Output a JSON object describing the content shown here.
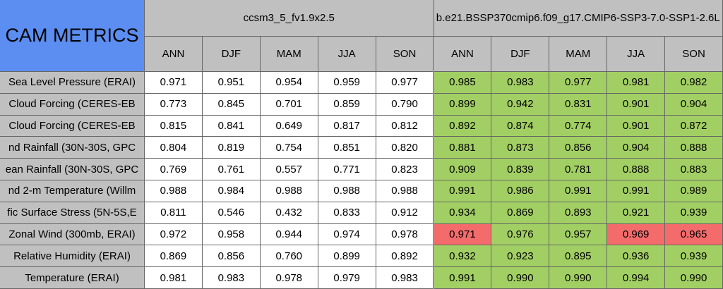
{
  "header": {
    "title": "CAM METRICS",
    "case_a": "ccsm3_5_fv1.9x2.5",
    "case_b": "b.e21.BSSP370cmip6.f09_g17.CMIP6-SSP3-7.0-SSP1-2.6L",
    "seasons_a": [
      "ANN",
      "DJF",
      "MAM",
      "JJA",
      "SON"
    ],
    "seasons_b": [
      "ANN",
      "DJF",
      "MAM",
      "JJA",
      "SON"
    ]
  },
  "rows": [
    {
      "label": "Sea Level Pressure (ERAI)",
      "case_a": [
        "0.971",
        "0.951",
        "0.954",
        "0.959",
        "0.977"
      ],
      "case_b": [
        "0.985",
        "0.983",
        "0.977",
        "0.981",
        "0.982"
      ],
      "case_b_colors": [
        "#a2cf63",
        "#a2cf63",
        "#a2cf63",
        "#a2cf63",
        "#a2cf63"
      ]
    },
    {
      "label": "Cloud Forcing (CERES-EB",
      "case_a": [
        "0.773",
        "0.845",
        "0.701",
        "0.859",
        "0.790"
      ],
      "case_b": [
        "0.899",
        "0.942",
        "0.831",
        "0.901",
        "0.904"
      ],
      "case_b_colors": [
        "#a2cf63",
        "#a2cf63",
        "#a2cf63",
        "#a2cf63",
        "#a2cf63"
      ]
    },
    {
      "label": "Cloud Forcing (CERES-EB",
      "case_a": [
        "0.815",
        "0.841",
        "0.649",
        "0.817",
        "0.812"
      ],
      "case_b": [
        "0.892",
        "0.874",
        "0.774",
        "0.901",
        "0.872"
      ],
      "case_b_colors": [
        "#a2cf63",
        "#a2cf63",
        "#a2cf63",
        "#a2cf63",
        "#a2cf63"
      ]
    },
    {
      "label": "nd Rainfall (30N-30S, GPC",
      "case_a": [
        "0.804",
        "0.819",
        "0.754",
        "0.851",
        "0.820"
      ],
      "case_b": [
        "0.881",
        "0.873",
        "0.856",
        "0.904",
        "0.888"
      ],
      "case_b_colors": [
        "#a2cf63",
        "#a2cf63",
        "#a2cf63",
        "#a2cf63",
        "#a2cf63"
      ]
    },
    {
      "label": "ean Rainfall (30N-30S, GPC",
      "case_a": [
        "0.769",
        "0.761",
        "0.557",
        "0.771",
        "0.823"
      ],
      "case_b": [
        "0.909",
        "0.839",
        "0.781",
        "0.888",
        "0.883"
      ],
      "case_b_colors": [
        "#a2cf63",
        "#a2cf63",
        "#a2cf63",
        "#a2cf63",
        "#a2cf63"
      ]
    },
    {
      "label": "nd 2-m Temperature (Willm",
      "case_a": [
        "0.988",
        "0.984",
        "0.988",
        "0.988",
        "0.988"
      ],
      "case_b": [
        "0.991",
        "0.986",
        "0.991",
        "0.991",
        "0.989"
      ],
      "case_b_colors": [
        "#a2cf63",
        "#a2cf63",
        "#a2cf63",
        "#a2cf63",
        "#a2cf63"
      ]
    },
    {
      "label": "fic Surface Stress (5N-5S,E",
      "case_a": [
        "0.811",
        "0.546",
        "0.432",
        "0.833",
        "0.912"
      ],
      "case_b": [
        "0.934",
        "0.869",
        "0.893",
        "0.921",
        "0.939"
      ],
      "case_b_colors": [
        "#a2cf63",
        "#a2cf63",
        "#a2cf63",
        "#a2cf63",
        "#a2cf63"
      ]
    },
    {
      "label": "Zonal Wind (300mb, ERAI)",
      "case_a": [
        "0.972",
        "0.958",
        "0.944",
        "0.974",
        "0.978"
      ],
      "case_b": [
        "0.971",
        "0.976",
        "0.957",
        "0.969",
        "0.965"
      ],
      "case_b_colors": [
        "#f46b6b",
        "#a2cf63",
        "#a2cf63",
        "#f46b6b",
        "#f46b6b"
      ]
    },
    {
      "label": "Relative Humidity (ERAI)",
      "case_a": [
        "0.869",
        "0.856",
        "0.760",
        "0.899",
        "0.892"
      ],
      "case_b": [
        "0.932",
        "0.923",
        "0.895",
        "0.936",
        "0.939"
      ],
      "case_b_colors": [
        "#a2cf63",
        "#a2cf63",
        "#a2cf63",
        "#a2cf63",
        "#a2cf63"
      ]
    },
    {
      "label": "Temperature (ERAI)",
      "case_a": [
        "0.981",
        "0.983",
        "0.978",
        "0.979",
        "0.983"
      ],
      "case_b": [
        "0.991",
        "0.990",
        "0.990",
        "0.994",
        "0.990"
      ],
      "case_b_colors": [
        "#a2cf63",
        "#a2cf63",
        "#a2cf63",
        "#a2cf63",
        "#a2cf63"
      ]
    }
  ]
}
